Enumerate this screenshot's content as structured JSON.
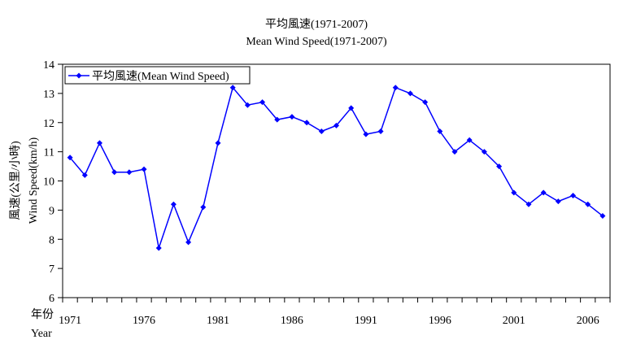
{
  "chart_data": {
    "type": "line",
    "title": "平均風速(1971-2007)",
    "subtitle": "Mean Wind Speed(1971-2007)",
    "ylabel_cn": "風速(公里/小時)",
    "ylabel_en": "Wind Speed(km/h)",
    "xlabel_cn": "年份",
    "xlabel_en": "Year",
    "ylim": [
      6,
      14
    ],
    "yticks": [
      6,
      7,
      8,
      9,
      10,
      11,
      12,
      13,
      14
    ],
    "xlim": [
      1971,
      2007
    ],
    "xtick_labels": [
      "1971",
      "1976",
      "1981",
      "1986",
      "1991",
      "1996",
      "2001",
      "2006"
    ],
    "legend_position": "top-left",
    "grid": false,
    "series": [
      {
        "name": "平均風速(Mean Wind Speed)",
        "color": "#0000FF",
        "marker": "diamond",
        "x": [
          1971,
          1972,
          1973,
          1974,
          1975,
          1976,
          1977,
          1978,
          1979,
          1980,
          1981,
          1982,
          1983,
          1984,
          1985,
          1986,
          1987,
          1988,
          1989,
          1990,
          1991,
          1992,
          1993,
          1994,
          1995,
          1996,
          1997,
          1998,
          1999,
          2000,
          2001,
          2002,
          2003,
          2004,
          2005,
          2006,
          2007
        ],
        "values": [
          10.8,
          10.2,
          11.3,
          10.3,
          10.3,
          10.4,
          7.7,
          9.2,
          7.9,
          9.1,
          11.3,
          13.2,
          12.6,
          12.7,
          12.1,
          12.2,
          12.0,
          11.7,
          11.9,
          12.5,
          11.6,
          11.7,
          13.2,
          13.0,
          12.7,
          11.7,
          11.0,
          11.4,
          11.0,
          10.5,
          9.6,
          9.2,
          9.6,
          9.3,
          9.5,
          9.2,
          8.8
        ]
      }
    ]
  }
}
